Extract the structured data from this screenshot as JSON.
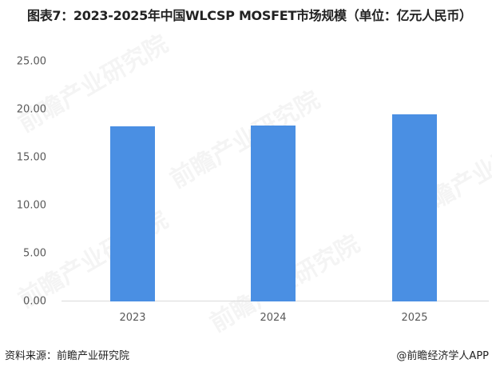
{
  "title": "图表7：2023-2025年中国WLCSP MOSFET市场规模（单位：亿元人民币）",
  "source": "资料来源：前瞻产业研究院",
  "credit": "@前瞻经济学人APP",
  "watermark": "前瞻产业研究院",
  "colors": {
    "bar": "#4a8fe3",
    "axis": "#d9d9d9",
    "text": "#595959"
  },
  "chart_data": {
    "type": "bar",
    "title": "图表7：2023-2025年中国WLCSP MOSFET市场规模（单位：亿元人民币）",
    "xlabel": "",
    "ylabel": "亿元人民币",
    "categories": [
      "2023",
      "2024",
      "2025"
    ],
    "values": [
      18.25,
      18.35,
      19.5
    ],
    "ylim": [
      0,
      25
    ],
    "yticks": [
      "0.00",
      "5.00",
      "10.00",
      "15.00",
      "20.00",
      "25.00"
    ],
    "grid": false,
    "legend": null
  }
}
